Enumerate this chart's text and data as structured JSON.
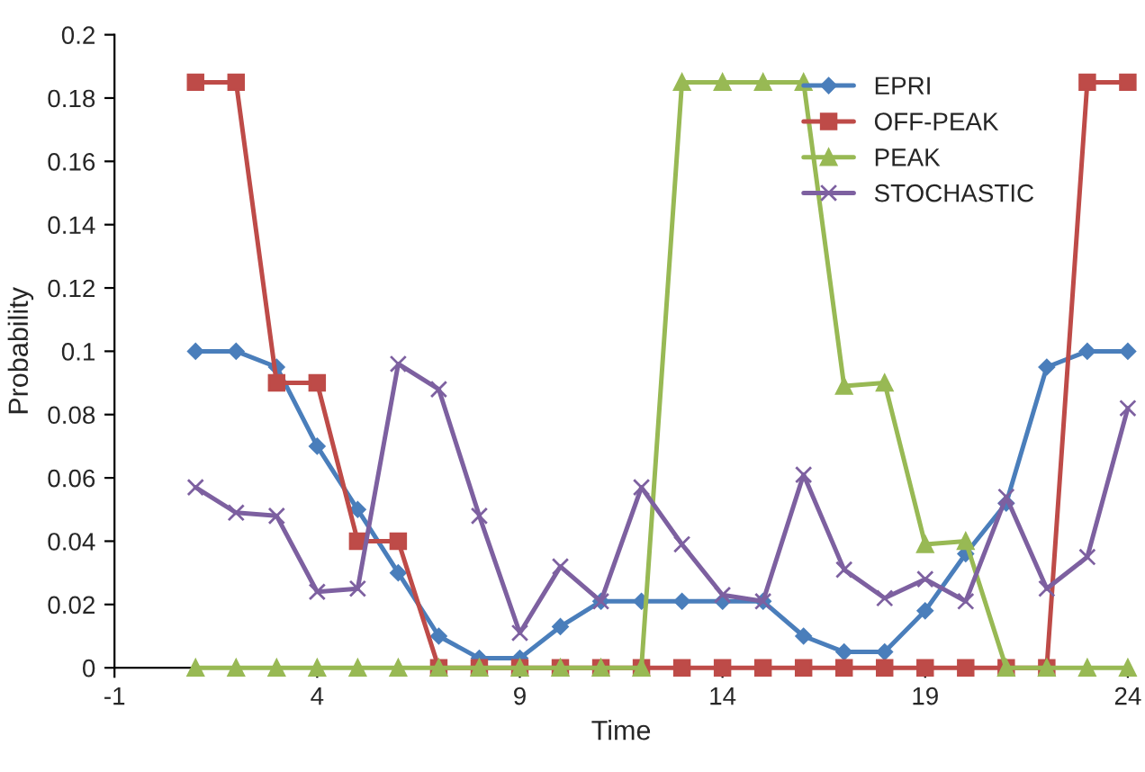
{
  "chart_data": {
    "type": "line",
    "xlabel": "Time",
    "ylabel": "Probability",
    "x": [
      1,
      2,
      3,
      4,
      5,
      6,
      7,
      8,
      9,
      10,
      11,
      12,
      13,
      14,
      15,
      16,
      17,
      18,
      19,
      20,
      21,
      22,
      23,
      24
    ],
    "series": [
      {
        "name": "EPRI",
        "color": "#4a7ebb",
        "marker": "diamond",
        "values": [
          0.1,
          0.1,
          0.095,
          0.07,
          0.05,
          0.03,
          0.01,
          0.003,
          0.003,
          0.013,
          0.021,
          0.021,
          0.021,
          0.021,
          0.021,
          0.01,
          0.005,
          0.005,
          0.018,
          0.036,
          0.052,
          0.095,
          0.1,
          0.1
        ]
      },
      {
        "name": "OFF-PEAK",
        "color": "#be4b48",
        "marker": "square",
        "values": [
          0.185,
          0.185,
          0.09,
          0.09,
          0.04,
          0.04,
          0,
          0,
          0,
          0,
          0,
          0,
          0,
          0,
          0,
          0,
          0,
          0,
          0,
          0,
          0,
          0,
          0.185,
          0.185
        ]
      },
      {
        "name": "PEAK",
        "color": "#98b954",
        "marker": "triangle",
        "values": [
          0,
          0,
          0,
          0,
          0,
          0,
          0,
          0,
          0,
          0,
          0,
          0,
          0.185,
          0.185,
          0.185,
          0.185,
          0.089,
          0.09,
          0.039,
          0.04,
          0,
          0,
          0,
          0
        ]
      },
      {
        "name": "STOCHASTIC",
        "color": "#7d60a0",
        "marker": "cross",
        "values": [
          0.057,
          0.049,
          0.048,
          0.024,
          0.025,
          0.096,
          0.088,
          0.048,
          0.011,
          0.032,
          0.021,
          0.057,
          0.039,
          0.023,
          0.021,
          0.061,
          0.031,
          0.022,
          0.028,
          0.021,
          0.054,
          0.025,
          0.035,
          0.082
        ]
      }
    ],
    "xlim": [
      -1,
      24
    ],
    "xticks": [
      -1,
      4,
      9,
      14,
      19,
      24
    ],
    "ylim": [
      0,
      0.2
    ],
    "yticks": [
      0,
      0.02,
      0.04,
      0.06,
      0.08,
      0.1,
      0.12,
      0.14,
      0.16,
      0.18,
      0.2
    ],
    "grid": false,
    "legend": "top right",
    "line_style": "solid"
  }
}
